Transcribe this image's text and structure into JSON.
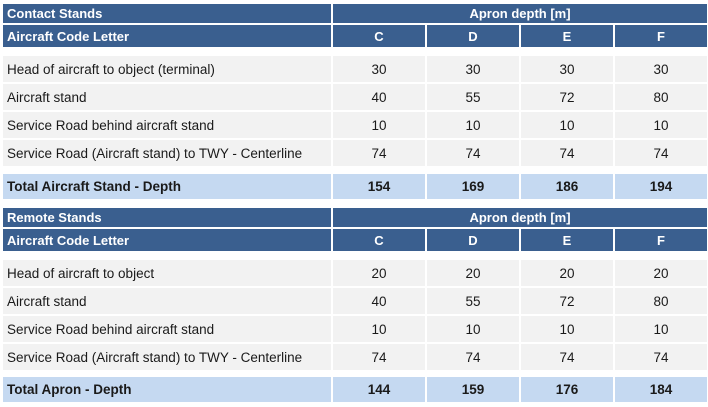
{
  "tables": [
    {
      "title": "Contact Stands",
      "span_header": "Apron depth [m]",
      "code_label": "Aircraft Code Letter",
      "codes": [
        "C",
        "D",
        "E",
        "F"
      ],
      "rows": [
        {
          "label": "Head of aircraft to object (terminal)",
          "values": [
            "30",
            "30",
            "30",
            "30"
          ]
        },
        {
          "label": "Aircraft stand",
          "values": [
            "40",
            "55",
            "72",
            "80"
          ]
        },
        {
          "label": "Service Road behind aircraft stand",
          "values": [
            "10",
            "10",
            "10",
            "10"
          ]
        },
        {
          "label": "Service Road (Aircraft stand) to TWY - Centerline",
          "values": [
            "74",
            "74",
            "74",
            "74"
          ]
        }
      ],
      "total": {
        "label": "Total Aircraft Stand - Depth",
        "values": [
          "154",
          "169",
          "186",
          "194"
        ]
      }
    },
    {
      "title": "Remote Stands",
      "span_header": "Apron depth [m]",
      "code_label": "Aircraft Code Letter",
      "codes": [
        "C",
        "D",
        "E",
        "F"
      ],
      "rows": [
        {
          "label": "Head of aircraft to object",
          "values": [
            "20",
            "20",
            "20",
            "20"
          ]
        },
        {
          "label": "Aircraft stand",
          "values": [
            "40",
            "55",
            "72",
            "80"
          ]
        },
        {
          "label": "Service Road behind aircraft stand",
          "values": [
            "10",
            "10",
            "10",
            "10"
          ]
        },
        {
          "label": "Service Road (Aircraft stand) to TWY - Centerline",
          "values": [
            "74",
            "74",
            "74",
            "74"
          ]
        }
      ],
      "total": {
        "label": "Total Apron - Depth",
        "values": [
          "144",
          "159",
          "176",
          "184"
        ]
      }
    }
  ],
  "colors": {
    "header": "#3a5f8f",
    "data": "#f2f2f2",
    "total": "#c5d9f1"
  }
}
